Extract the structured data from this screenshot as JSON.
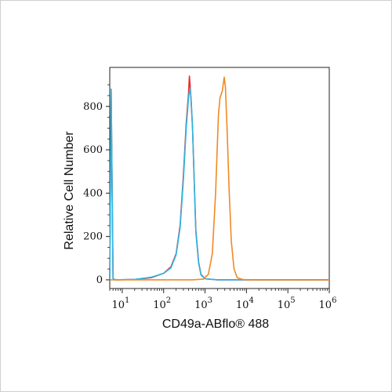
{
  "chart_data": {
    "type": "line",
    "ylabel": "Relative Cell Number",
    "xlabel": "CD49a-ABflo® 488",
    "x_scale": "log",
    "xlim": [
      5,
      1000000
    ],
    "ylim": [
      -40,
      980
    ],
    "x_ticks": [
      {
        "base": "10",
        "exp": "1",
        "value": 10
      },
      {
        "base": "10",
        "exp": "2",
        "value": 100
      },
      {
        "base": "10",
        "exp": "3",
        "value": 1000
      },
      {
        "base": "10",
        "exp": "4",
        "value": 10000
      },
      {
        "base": "10",
        "exp": "5",
        "value": 100000
      },
      {
        "base": "10",
        "exp": "6",
        "value": 1000000
      }
    ],
    "y_ticks": [
      "0",
      "200",
      "400",
      "600",
      "800"
    ],
    "y_tick_values": [
      0,
      200,
      400,
      600,
      800
    ],
    "grid": false,
    "series": [
      {
        "color": "#e8282b",
        "points": [
          [
            5,
            0
          ],
          [
            5.4,
            870
          ],
          [
            6,
            5
          ],
          [
            7,
            0
          ],
          [
            20,
            2
          ],
          [
            50,
            10
          ],
          [
            100,
            30
          ],
          [
            150,
            60
          ],
          [
            200,
            120
          ],
          [
            250,
            250
          ],
          [
            300,
            480
          ],
          [
            350,
            720
          ],
          [
            400,
            860
          ],
          [
            420,
            940
          ],
          [
            450,
            860
          ],
          [
            500,
            700
          ],
          [
            550,
            450
          ],
          [
            600,
            230
          ],
          [
            700,
            80
          ],
          [
            800,
            25
          ],
          [
            1000,
            5
          ],
          [
            2000,
            0
          ],
          [
            1000000,
            0
          ]
        ]
      },
      {
        "color": "#2ab7e3",
        "points": [
          [
            5,
            0
          ],
          [
            5.4,
            880
          ],
          [
            6,
            5
          ],
          [
            7,
            0
          ],
          [
            20,
            2
          ],
          [
            50,
            12
          ],
          [
            100,
            30
          ],
          [
            150,
            55
          ],
          [
            200,
            115
          ],
          [
            250,
            240
          ],
          [
            300,
            460
          ],
          [
            350,
            700
          ],
          [
            400,
            840
          ],
          [
            430,
            885
          ],
          [
            460,
            840
          ],
          [
            500,
            700
          ],
          [
            550,
            440
          ],
          [
            600,
            220
          ],
          [
            700,
            75
          ],
          [
            800,
            22
          ],
          [
            1000,
            5
          ],
          [
            2000,
            0
          ],
          [
            1000000,
            0
          ]
        ]
      },
      {
        "color": "#f08a24",
        "points": [
          [
            5,
            0
          ],
          [
            500,
            0
          ],
          [
            900,
            3
          ],
          [
            1200,
            25
          ],
          [
            1500,
            120
          ],
          [
            1800,
            400
          ],
          [
            2100,
            760
          ],
          [
            2300,
            840
          ],
          [
            2600,
            870
          ],
          [
            2900,
            935
          ],
          [
            3100,
            890
          ],
          [
            3400,
            700
          ],
          [
            3800,
            420
          ],
          [
            4300,
            180
          ],
          [
            5000,
            50
          ],
          [
            6000,
            10
          ],
          [
            8000,
            2
          ],
          [
            10000,
            0
          ],
          [
            1000000,
            0
          ]
        ]
      }
    ]
  }
}
